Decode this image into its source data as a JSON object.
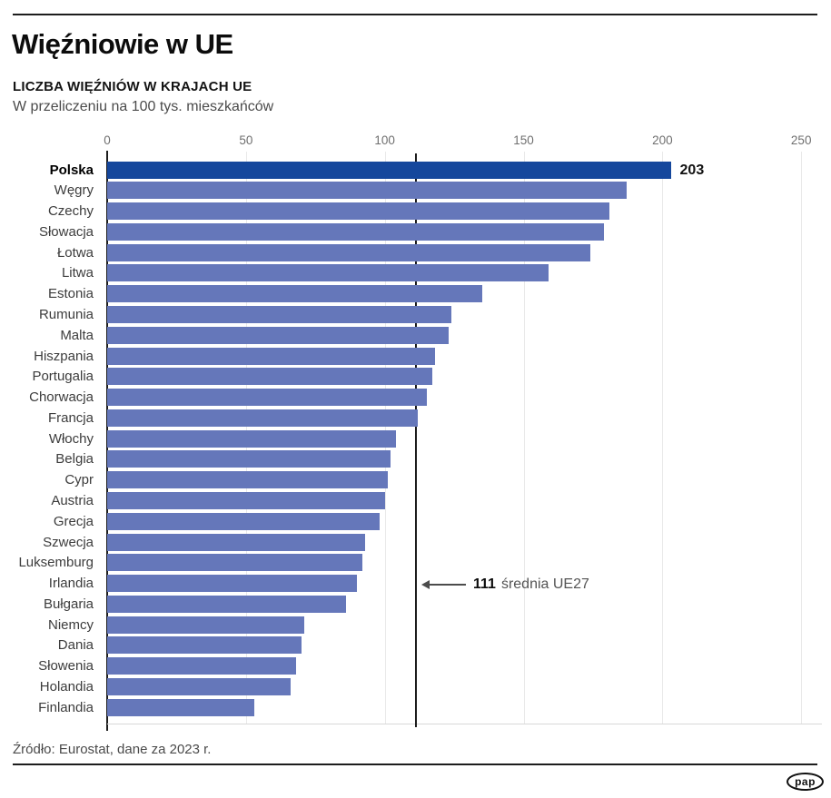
{
  "header": {
    "title": "Więźniowie w UE",
    "chart_title": "LICZBA WIĘŹNIÓW W KRAJACH UE",
    "chart_subtitle": "W przeliczeniu na 100 tys. mieszkańców"
  },
  "chart_data": {
    "type": "bar",
    "orientation": "horizontal",
    "title": "LICZBA WIĘŹNIÓW W KRAJACH UE",
    "subtitle": "W przeliczeniu na 100 tys. mieszkańców",
    "xlim": [
      0,
      250
    ],
    "x_ticks": [
      0,
      50,
      100,
      150,
      200,
      250
    ],
    "grid": true,
    "highlight_category": "Polska",
    "labeled_value": {
      "category": "Polska",
      "value": 203
    },
    "average_line": {
      "value": 111,
      "label": "średnia UE27"
    },
    "categories": [
      "Polska",
      "Węgry",
      "Czechy",
      "Słowacja",
      "Łotwa",
      "Litwa",
      "Estonia",
      "Rumunia",
      "Malta",
      "Hiszpania",
      "Portugalia",
      "Chorwacja",
      "Francja",
      "Włochy",
      "Belgia",
      "Cypr",
      "Austria",
      "Grecja",
      "Szwecja",
      "Luksemburg",
      "Irlandia",
      "Bułgaria",
      "Niemcy",
      "Dania",
      "Słowenia",
      "Holandia",
      "Finlandia"
    ],
    "values": [
      203,
      187,
      181,
      179,
      174,
      159,
      135,
      124,
      123,
      118,
      117,
      115,
      112,
      104,
      102,
      101,
      100,
      98,
      93,
      92,
      90,
      86,
      71,
      70,
      68,
      66,
      53
    ]
  },
  "colors": {
    "highlight_bar": "#15479c",
    "bar": "#6577ba",
    "average_line": "#1d1d1d",
    "grid_line": "#e9e9e9",
    "axis_line": "#1d1d1d"
  },
  "footer": {
    "source": "Źródło: Eurostat, dane za 2023 r.",
    "logo_text": "pap"
  }
}
